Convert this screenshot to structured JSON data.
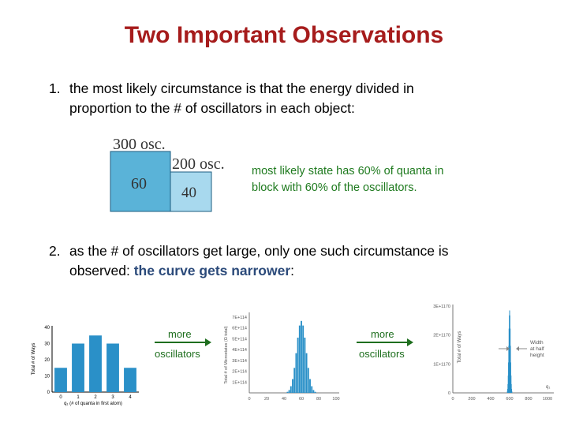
{
  "title": "Two Important Observations",
  "obs1": {
    "number": "1.",
    "line1": "the most likely circumstance is that the energy divided in",
    "line2": "proportion to the # of oscillators in each object:"
  },
  "blocks": {
    "label_300": "300 osc.",
    "label_200": "200 osc.",
    "value_60": "60",
    "value_40": "40",
    "color_big": "#5ab3d8",
    "color_small": "#a8d9ee"
  },
  "state_note": {
    "line1": "most likely state has 60% of quanta in",
    "line2": "block with 60% of the oscillators."
  },
  "obs2": {
    "number": "2.",
    "line1": "as the # of oscillators get large, only one such circumstance is",
    "line2_pre": "observed: ",
    "line2_highlight": "the curve gets narrower",
    "line2_post": ":"
  },
  "arrow1": {
    "top": "more",
    "bottom": "oscillators"
  },
  "arrow2": {
    "top": "more",
    "bottom": "oscillators"
  },
  "chart_data": [
    {
      "type": "bar",
      "categories": [
        "0",
        "1",
        "2",
        "3",
        "4"
      ],
      "values": [
        15,
        30,
        35,
        30,
        15
      ],
      "ylim": [
        0,
        40
      ],
      "yticks": [
        "0",
        "10",
        "20",
        "30",
        "40"
      ],
      "ylabel": "Total # of Ways",
      "xlabel": "q₁ (# of quanta in first atom)",
      "bar_color": "#2a90c8"
    },
    {
      "type": "bar",
      "x": [
        0,
        100
      ],
      "xticks": [
        "0",
        "20",
        "40",
        "60",
        "80",
        "100"
      ],
      "yticks": [
        "7E+114",
        "6E+114",
        "5E+114",
        "4E+114",
        "3E+114",
        "2E+114",
        "1E+114"
      ],
      "ylabel": "Total # of Microstates (Ω total)",
      "peak": 60,
      "bar_color": "#2a90c8"
    },
    {
      "type": "bar",
      "x": [
        0,
        1000
      ],
      "xticks": [
        "0",
        "200",
        "400",
        "600",
        "800",
        "1000"
      ],
      "yticks": [
        "3E+1170",
        "2E+1170",
        "1E+1170",
        "0"
      ],
      "ylabel": "Total # of Ways",
      "xlabel": "q₁",
      "peak": 600,
      "annotation": [
        "Width",
        "at half",
        "height"
      ],
      "bar_color": "#2a90c8"
    }
  ]
}
